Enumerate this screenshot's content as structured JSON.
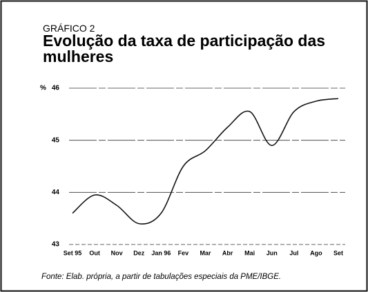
{
  "chart_data": {
    "type": "line",
    "label": "GRÁFICO 2",
    "title": "Evolução da taxa de participação das mulheres",
    "y_unit": "%",
    "categories": [
      "Set 95",
      "Out",
      "Nov",
      "Dez",
      "Jan 96",
      "Fev",
      "Mar",
      "Abr",
      "Mai",
      "Jun",
      "Jul",
      "Ago",
      "Set"
    ],
    "values": [
      43.6,
      43.95,
      43.75,
      43.4,
      43.6,
      44.5,
      44.8,
      45.25,
      45.55,
      44.9,
      45.55,
      45.75,
      45.8
    ],
    "color": "#111111",
    "ylim": [
      43,
      46
    ],
    "yticks": [
      43,
      44,
      45,
      46
    ],
    "grid": true,
    "source": "Fonte: Elab. própria, a partir de tabulações especiais da PME/IBGE."
  }
}
